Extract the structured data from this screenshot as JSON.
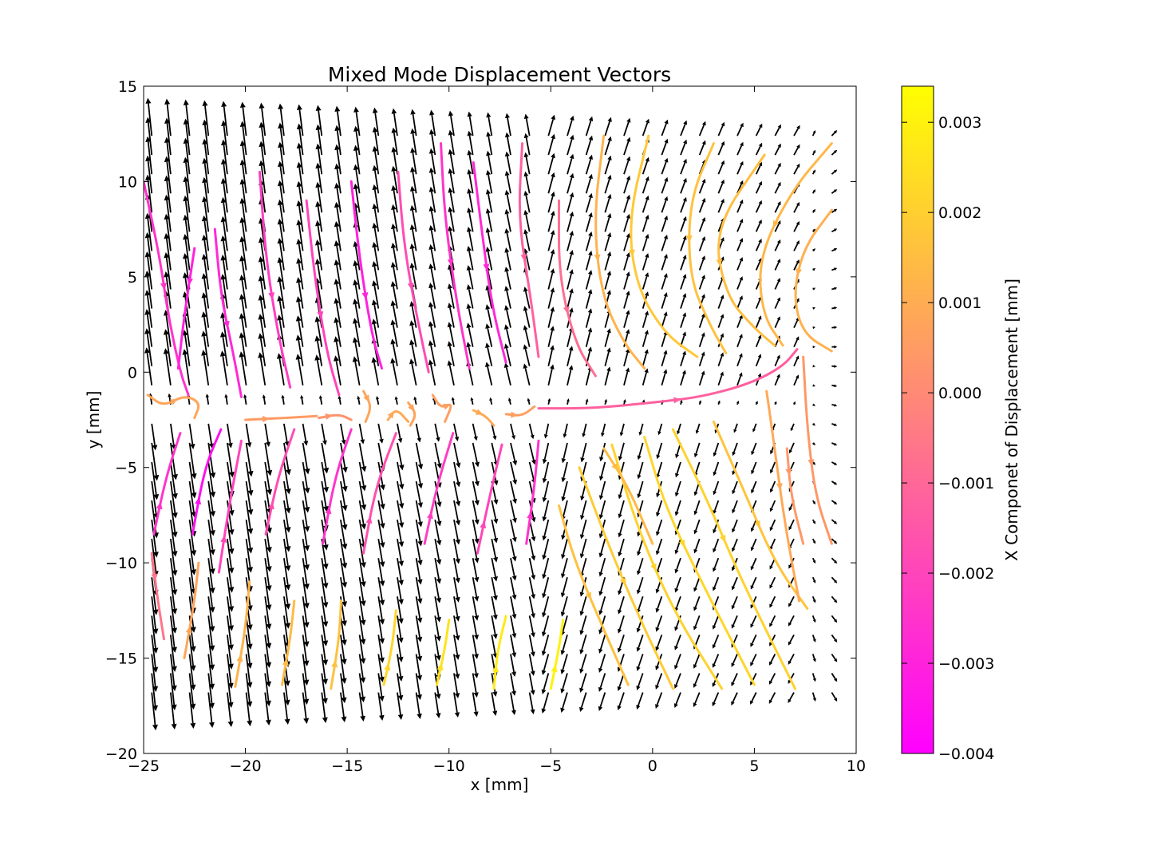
{
  "chart_data": {
    "type": "quiver-streamplot",
    "title": "Mixed Mode Displacement Vectors",
    "xlabel": "x [mm]",
    "ylabel": "y [mm]",
    "xlim": [
      -25,
      10
    ],
    "ylim": [
      -20,
      15
    ],
    "xticks": [
      -25,
      -20,
      -15,
      -10,
      -5,
      0,
      5,
      10
    ],
    "yticks": [
      -20,
      -15,
      -10,
      -5,
      0,
      5,
      10,
      15
    ],
    "xtick_labels": [
      "−25",
      "−20",
      "−15",
      "−10",
      "−5",
      "0",
      "5",
      "10"
    ],
    "ytick_labels": [
      "−20",
      "−15",
      "−10",
      "−5",
      "0",
      "5",
      "10",
      "15"
    ],
    "grid": false,
    "colorbar": {
      "label": "X Componet of Displacement [mm]",
      "range": [
        -0.004,
        0.0034
      ],
      "ticks": [
        -0.004,
        -0.003,
        -0.002,
        -0.001,
        0.0,
        0.001,
        0.002,
        0.003
      ],
      "tick_labels": [
        "−0.004",
        "−0.003",
        "−0.002",
        "−0.001",
        "0.000",
        "0.001",
        "0.002",
        "0.003"
      ],
      "colormap": "spring",
      "colors": [
        "#ff00ff",
        "#ffff00"
      ]
    },
    "vector_field": {
      "x_range": [
        -24.6,
        8.8
      ],
      "y_range": [
        -16.8,
        12.4
      ],
      "crack_tip": [
        7.0,
        1.2
      ],
      "crack_y": -2.0,
      "arrow_color": "#000000"
    },
    "streamlines": [
      {
        "points": [
          [
            -25.0,
            10.0
          ],
          [
            -24.2,
            6.0
          ],
          [
            -23.8,
            3.0
          ],
          [
            -23.2,
            0.0
          ],
          [
            -22.8,
            -1.2
          ]
        ],
        "value": -0.0025
      },
      {
        "points": [
          [
            -22.5,
            6.5
          ],
          [
            -23.0,
            3.0
          ],
          [
            -23.3,
            0.2
          ]
        ],
        "value": -0.003
      },
      {
        "points": [
          [
            -21.5,
            7.5
          ],
          [
            -21.2,
            4.0
          ],
          [
            -20.6,
            1.0
          ],
          [
            -20.2,
            -1.3
          ]
        ],
        "value": -0.0028
      },
      {
        "points": [
          [
            -19.3,
            10.5
          ],
          [
            -19.0,
            6.0
          ],
          [
            -18.4,
            2.0
          ],
          [
            -17.8,
            -0.8
          ]
        ],
        "value": -0.0022
      },
      {
        "points": [
          [
            -17.0,
            9.0
          ],
          [
            -16.6,
            5.0
          ],
          [
            -16.0,
            1.0
          ],
          [
            -15.4,
            -1.2
          ]
        ],
        "value": -0.002
      },
      {
        "points": [
          [
            -14.8,
            10.0
          ],
          [
            -14.4,
            6.0
          ],
          [
            -13.8,
            2.0
          ],
          [
            -13.3,
            0.2
          ]
        ],
        "value": -0.003
      },
      {
        "points": [
          [
            -12.5,
            10.5
          ],
          [
            -12.2,
            6.5
          ],
          [
            -11.5,
            2.5
          ],
          [
            -11.0,
            0.0
          ]
        ],
        "value": -0.0018
      },
      {
        "points": [
          [
            -10.4,
            12.0
          ],
          [
            -10.2,
            8.0
          ],
          [
            -9.6,
            3.5
          ],
          [
            -9.0,
            0.2
          ]
        ],
        "value": -0.0025
      },
      {
        "points": [
          [
            -8.8,
            11.0
          ],
          [
            -8.4,
            7.5
          ],
          [
            -7.9,
            3.5
          ],
          [
            -7.2,
            0.5
          ]
        ],
        "value": -0.0028
      },
      {
        "points": [
          [
            -6.4,
            12.0
          ],
          [
            -6.6,
            8.0
          ],
          [
            -6.0,
            4.0
          ],
          [
            -5.6,
            0.8
          ]
        ],
        "value": -0.0012
      },
      {
        "points": [
          [
            -4.6,
            9.0
          ],
          [
            -4.6,
            5.0
          ],
          [
            -3.8,
            1.5
          ],
          [
            -2.8,
            -0.2
          ]
        ],
        "value": -0.0008
      },
      {
        "points": [
          [
            -2.4,
            12.4
          ],
          [
            -2.9,
            8.0
          ],
          [
            -2.5,
            4.0
          ],
          [
            -1.4,
            1.5
          ],
          [
            -0.4,
            0.2
          ]
        ],
        "value": 0.0012
      },
      {
        "points": [
          [
            -0.2,
            12.4
          ],
          [
            -1.2,
            8.0
          ],
          [
            -0.8,
            4.5
          ],
          [
            0.6,
            2.0
          ],
          [
            2.2,
            0.8
          ]
        ],
        "value": 0.0018
      },
      {
        "points": [
          [
            3.0,
            12.0
          ],
          [
            1.8,
            9.0
          ],
          [
            1.8,
            5.0
          ],
          [
            2.8,
            2.5
          ],
          [
            3.6,
            1.0
          ]
        ],
        "value": 0.0016
      },
      {
        "points": [
          [
            5.5,
            11.4
          ],
          [
            3.0,
            7.5
          ],
          [
            3.6,
            4.0
          ],
          [
            5.0,
            2.3
          ],
          [
            6.0,
            1.4
          ]
        ],
        "value": 0.0015
      },
      {
        "points": [
          [
            8.8,
            12.0
          ],
          [
            6.8,
            9.5
          ],
          [
            5.2,
            6.0
          ],
          [
            5.4,
            3.0
          ],
          [
            6.4,
            1.4
          ]
        ],
        "value": 0.0013
      },
      {
        "points": [
          [
            8.8,
            8.5
          ],
          [
            7.4,
            6.5
          ],
          [
            6.9,
            4.0
          ],
          [
            7.4,
            2.0
          ],
          [
            8.8,
            1.1
          ]
        ],
        "value": 0.0011
      },
      {
        "points": [
          [
            -5.6,
            -1.9
          ],
          [
            -3.0,
            -1.9
          ],
          [
            0.0,
            -1.6
          ],
          [
            2.4,
            -1.3
          ],
          [
            4.8,
            -0.6
          ],
          [
            6.4,
            0.3
          ],
          [
            7.1,
            1.2
          ]
        ],
        "value": -0.0012
      },
      {
        "points": [
          [
            -24.8,
            -1.2
          ],
          [
            -24.0,
            -1.8
          ],
          [
            -23.0,
            -1.2
          ],
          [
            -22.2,
            -1.6
          ],
          [
            -22.5,
            -2.4
          ]
        ],
        "value": 0.0008
      },
      {
        "points": [
          [
            -20.0,
            -2.5
          ],
          [
            -18.0,
            -2.4
          ],
          [
            -16.5,
            -2.3
          ]
        ],
        "value": 0.0005
      },
      {
        "points": [
          [
            -16.4,
            -2.4
          ],
          [
            -15.4,
            -2.2
          ],
          [
            -14.8,
            -2.5
          ]
        ],
        "value": 0.0003
      },
      {
        "points": [
          [
            -14.2,
            -1.0
          ],
          [
            -13.8,
            -1.8
          ],
          [
            -14.1,
            -2.6
          ]
        ],
        "value": 0.0008
      },
      {
        "points": [
          [
            -13.0,
            -2.5
          ],
          [
            -12.6,
            -1.9
          ],
          [
            -12.0,
            -2.6
          ]
        ],
        "value": 0.0009
      },
      {
        "points": [
          [
            -12.0,
            -1.6
          ],
          [
            -11.6,
            -2.2
          ],
          [
            -11.9,
            -2.8
          ]
        ],
        "value": 0.0007
      },
      {
        "points": [
          [
            -10.8,
            -1.2
          ],
          [
            -10.4,
            -1.9
          ],
          [
            -9.8,
            -1.6
          ],
          [
            -10.2,
            -2.6
          ]
        ],
        "value": 0.0006
      },
      {
        "points": [
          [
            -8.8,
            -2.0
          ],
          [
            -8.2,
            -2.3
          ],
          [
            -7.8,
            -2.8
          ]
        ],
        "value": 0.0009
      },
      {
        "points": [
          [
            -7.2,
            -2.2
          ],
          [
            -6.4,
            -2.3
          ],
          [
            -5.8,
            -1.8
          ]
        ],
        "value": 0.0006
      },
      {
        "points": [
          [
            -24.5,
            -8.5
          ],
          [
            -23.9,
            -5.5
          ],
          [
            -23.2,
            -3.2
          ]
        ],
        "value": -0.0025
      },
      {
        "points": [
          [
            -22.6,
            -8.5
          ],
          [
            -22.0,
            -5.0
          ],
          [
            -21.2,
            -3.0
          ]
        ],
        "value": -0.0035
      },
      {
        "points": [
          [
            -24.6,
            -9.5
          ],
          [
            -24.3,
            -12.0
          ],
          [
            -24.0,
            -14.0
          ]
        ],
        "value": -0.0006
      },
      {
        "points": [
          [
            -21.3,
            -10.5
          ],
          [
            -20.8,
            -7.0
          ],
          [
            -20.2,
            -3.6
          ]
        ],
        "value": -0.002
      },
      {
        "points": [
          [
            -19.0,
            -8.5
          ],
          [
            -18.4,
            -5.5
          ],
          [
            -17.6,
            -3.0
          ]
        ],
        "value": -0.0018
      },
      {
        "points": [
          [
            -16.2,
            -9.0
          ],
          [
            -15.6,
            -5.5
          ],
          [
            -14.8,
            -3.0
          ]
        ],
        "value": -0.0025
      },
      {
        "points": [
          [
            -14.2,
            -9.5
          ],
          [
            -13.6,
            -6.0
          ],
          [
            -12.6,
            -3.2
          ]
        ],
        "value": -0.0017
      },
      {
        "points": [
          [
            -11.2,
            -9.0
          ],
          [
            -10.6,
            -6.0
          ],
          [
            -9.8,
            -3.2
          ]
        ],
        "value": -0.0022
      },
      {
        "points": [
          [
            -8.6,
            -9.5
          ],
          [
            -8.0,
            -6.5
          ],
          [
            -7.4,
            -3.8
          ]
        ],
        "value": -0.002
      },
      {
        "points": [
          [
            -6.2,
            -9.0
          ],
          [
            -5.8,
            -6.0
          ],
          [
            -5.6,
            -3.6
          ]
        ],
        "value": -0.0025
      },
      {
        "points": [
          [
            -23.0,
            -15.0
          ],
          [
            -22.5,
            -12.0
          ],
          [
            -22.3,
            -10.0
          ]
        ],
        "value": 0.0008
      },
      {
        "points": [
          [
            -20.5,
            -16.5
          ],
          [
            -20.0,
            -13.5
          ],
          [
            -19.8,
            -11.0
          ]
        ],
        "value": 0.0012
      },
      {
        "points": [
          [
            -18.2,
            -16.4
          ],
          [
            -17.8,
            -14.0
          ],
          [
            -17.6,
            -12.0
          ]
        ],
        "value": 0.0014
      },
      {
        "points": [
          [
            -15.8,
            -16.6
          ],
          [
            -15.4,
            -14.0
          ],
          [
            -15.3,
            -12.0
          ]
        ],
        "value": 0.0016
      },
      {
        "points": [
          [
            -13.2,
            -16.4
          ],
          [
            -12.8,
            -14.5
          ],
          [
            -12.6,
            -12.5
          ]
        ],
        "value": 0.0022
      },
      {
        "points": [
          [
            -10.6,
            -16.4
          ],
          [
            -10.2,
            -14.5
          ],
          [
            -10.0,
            -13.0
          ]
        ],
        "value": 0.0026
      },
      {
        "points": [
          [
            -7.8,
            -16.6
          ],
          [
            -7.6,
            -14.5
          ],
          [
            -7.2,
            -12.8
          ]
        ],
        "value": 0.0028
      },
      {
        "points": [
          [
            -5.0,
            -16.6
          ],
          [
            -4.6,
            -14.5
          ],
          [
            -4.4,
            -13.0
          ]
        ],
        "value": 0.003
      },
      {
        "points": [
          [
            -4.6,
            -7.0
          ],
          [
            -3.8,
            -10.0
          ],
          [
            -2.4,
            -13.5
          ],
          [
            -1.2,
            -16.4
          ]
        ],
        "value": 0.0016
      },
      {
        "points": [
          [
            -3.6,
            -5.0
          ],
          [
            -2.2,
            -9.0
          ],
          [
            -0.6,
            -13.0
          ],
          [
            1.0,
            -16.6
          ]
        ],
        "value": 0.0019
      },
      {
        "points": [
          [
            -2.0,
            -3.8
          ],
          [
            -0.8,
            -8.0
          ],
          [
            1.0,
            -12.5
          ],
          [
            3.4,
            -16.6
          ]
        ],
        "value": 0.0021
      },
      {
        "points": [
          [
            -0.4,
            -3.4
          ],
          [
            0.6,
            -7.0
          ],
          [
            2.4,
            -11.0
          ],
          [
            5.0,
            -16.4
          ]
        ],
        "value": 0.0022
      },
      {
        "points": [
          [
            1.0,
            -3.0
          ],
          [
            2.6,
            -6.5
          ],
          [
            4.4,
            -11.0
          ],
          [
            7.0,
            -16.6
          ]
        ],
        "value": 0.0021
      },
      {
        "points": [
          [
            3.0,
            -2.6
          ],
          [
            4.4,
            -6.0
          ],
          [
            6.0,
            -10.0
          ],
          [
            7.6,
            -12.4
          ]
        ],
        "value": 0.0017
      },
      {
        "points": [
          [
            5.6,
            -1.0
          ],
          [
            6.0,
            -4.0
          ],
          [
            6.5,
            -8.0
          ],
          [
            7.2,
            -12.0
          ]
        ],
        "value": 0.0009
      },
      {
        "points": [
          [
            6.6,
            -4.0
          ],
          [
            6.8,
            -6.5
          ],
          [
            7.4,
            -9.0
          ]
        ],
        "value": 0.0004
      },
      {
        "points": [
          [
            7.4,
            0.8
          ],
          [
            7.6,
            -3.0
          ],
          [
            8.0,
            -6.5
          ],
          [
            8.8,
            -9.0
          ]
        ],
        "value": 0.0004
      },
      {
        "points": [
          [
            -2.4,
            -4.0
          ],
          [
            -1.2,
            -6.0
          ],
          [
            0.0,
            -9.0
          ]
        ],
        "value": 0.0014
      }
    ]
  }
}
